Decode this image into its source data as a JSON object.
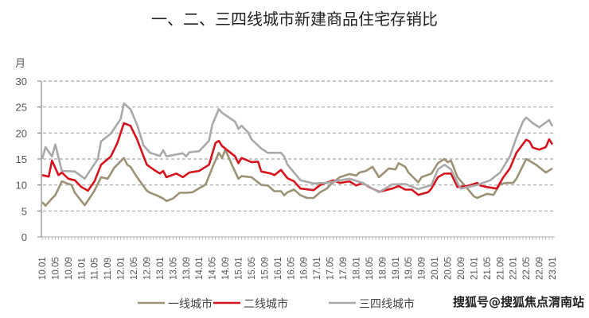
{
  "chart_data": {
    "type": "line",
    "title": "一、二、三四线城市新建商品住宅存销比",
    "ylabel": "月",
    "xlabel": "",
    "ylim": [
      0,
      30
    ],
    "yticks": [
      0,
      5,
      10,
      15,
      20,
      25,
      30
    ],
    "grid": "horizontal dashed",
    "legend_position": "bottom",
    "x_unit": "months since 10.01",
    "x_range": [
      0,
      156
    ],
    "xtick_labels": [
      "10.01",
      "10.05",
      "10.09",
      "11.01",
      "11.05",
      "11.09",
      "12.01",
      "12.05",
      "12.09",
      "13.01",
      "13.05",
      "13.09",
      "14.01",
      "14.05",
      "14.09",
      "15.01",
      "15.05",
      "15.09",
      "16.01",
      "16.05",
      "16.09",
      "17.01",
      "17.05",
      "17.09",
      "18.01",
      "18.05",
      "18.09",
      "19.01",
      "19.05",
      "19.09",
      "20.01",
      "20.05",
      "20.09",
      "21.01",
      "21.05",
      "21.09",
      "22.01",
      "22.05",
      "22.09",
      "23.01"
    ],
    "series": [
      {
        "name": "一线城市",
        "color": "#9c9275",
        "points": [
          [
            0,
            6.7
          ],
          [
            1,
            6
          ],
          [
            3,
            7.4
          ],
          [
            4,
            8
          ],
          [
            6,
            10.7
          ],
          [
            9,
            10
          ],
          [
            10,
            8.5
          ],
          [
            13,
            6.1
          ],
          [
            14,
            7
          ],
          [
            16,
            8.9
          ],
          [
            18,
            11.5
          ],
          [
            20,
            11.2
          ],
          [
            21,
            12.2
          ],
          [
            22,
            13.3
          ],
          [
            25,
            15.2
          ],
          [
            26,
            13.9
          ],
          [
            27,
            13.5
          ],
          [
            29,
            11.5
          ],
          [
            32,
            8.9
          ],
          [
            33,
            8.5
          ],
          [
            35,
            8
          ],
          [
            37,
            7.4
          ],
          [
            38,
            6.9
          ],
          [
            40,
            7.4
          ],
          [
            42,
            8.5
          ],
          [
            44,
            8.5
          ],
          [
            46,
            8.6
          ],
          [
            50,
            10.1
          ],
          [
            52,
            13.3
          ],
          [
            54,
            16.2
          ],
          [
            55,
            15.2
          ],
          [
            56,
            16.8
          ],
          [
            58,
            13.9
          ],
          [
            60,
            11.2
          ],
          [
            61,
            11.7
          ],
          [
            64,
            11.5
          ],
          [
            67,
            10
          ],
          [
            69,
            9.9
          ],
          [
            71,
            8.8
          ],
          [
            73,
            8.8
          ],
          [
            74,
            8
          ],
          [
            75,
            8.6
          ],
          [
            77,
            9.1
          ],
          [
            79,
            8
          ],
          [
            81,
            7.5
          ],
          [
            83,
            7.5
          ],
          [
            85,
            8.6
          ],
          [
            87,
            9.3
          ],
          [
            88,
            10
          ],
          [
            91,
            11.5
          ],
          [
            94,
            12.1
          ],
          [
            96,
            11.8
          ],
          [
            97,
            12.4
          ],
          [
            99,
            12.7
          ],
          [
            101,
            13.5
          ],
          [
            103,
            11.5
          ],
          [
            106,
            13.2
          ],
          [
            108,
            13
          ],
          [
            109,
            14.2
          ],
          [
            111,
            13.5
          ],
          [
            112,
            12.4
          ],
          [
            115,
            10.5
          ],
          [
            116,
            11.5
          ],
          [
            119,
            12.2
          ],
          [
            121,
            14.2
          ],
          [
            123,
            15
          ],
          [
            124,
            14.4
          ],
          [
            125,
            14.7
          ],
          [
            127,
            11.5
          ],
          [
            130,
            9.3
          ],
          [
            132,
            7.8
          ],
          [
            133,
            7.5
          ],
          [
            136,
            8.3
          ],
          [
            138,
            8.1
          ],
          [
            140,
            10.2
          ],
          [
            142,
            10.4
          ],
          [
            144,
            10.4
          ],
          [
            145,
            11.2
          ],
          [
            148,
            15
          ],
          [
            151,
            13.9
          ],
          [
            154,
            12.4
          ],
          [
            156,
            13.2
          ]
        ]
      },
      {
        "name": "二线城市",
        "color": "#d7141e",
        "points": [
          [
            0,
            11.9
          ],
          [
            2,
            11.6
          ],
          [
            3,
            14.7
          ],
          [
            5,
            11.9
          ],
          [
            6,
            12.4
          ],
          [
            8,
            11.2
          ],
          [
            10,
            10.9
          ],
          [
            12,
            9.6
          ],
          [
            14,
            8.9
          ],
          [
            16,
            10.7
          ],
          [
            18,
            13.9
          ],
          [
            21,
            15.5
          ],
          [
            23,
            18.1
          ],
          [
            25,
            21.9
          ],
          [
            27,
            21.4
          ],
          [
            29,
            18.8
          ],
          [
            31,
            15.5
          ],
          [
            32,
            13.9
          ],
          [
            34,
            13
          ],
          [
            36,
            12.2
          ],
          [
            37,
            12.7
          ],
          [
            38,
            11.5
          ],
          [
            41,
            12.2
          ],
          [
            43,
            11.5
          ],
          [
            45,
            12.4
          ],
          [
            48,
            12.7
          ],
          [
            51,
            13.9
          ],
          [
            53,
            18.1
          ],
          [
            54,
            18.5
          ],
          [
            55,
            17.5
          ],
          [
            59,
            15.5
          ],
          [
            60,
            14.2
          ],
          [
            61,
            15.2
          ],
          [
            64,
            14.4
          ],
          [
            66,
            14.5
          ],
          [
            67,
            12.6
          ],
          [
            70,
            12.2
          ],
          [
            71,
            11.9
          ],
          [
            73,
            12.9
          ],
          [
            75,
            11.3
          ],
          [
            77,
            10.7
          ],
          [
            79,
            9.3
          ],
          [
            83,
            9
          ],
          [
            85,
            10
          ],
          [
            89,
            10.9
          ],
          [
            91,
            10.4
          ],
          [
            94,
            10.7
          ],
          [
            96,
            9.9
          ],
          [
            98,
            10.4
          ],
          [
            100,
            9.6
          ],
          [
            103,
            8.7
          ],
          [
            107,
            9.3
          ],
          [
            109,
            9.8
          ],
          [
            111,
            9.1
          ],
          [
            113,
            9.1
          ],
          [
            115,
            8.1
          ],
          [
            118,
            8.6
          ],
          [
            119,
            9.3
          ],
          [
            121,
            11.5
          ],
          [
            123,
            12.2
          ],
          [
            125,
            12.2
          ],
          [
            127,
            9.6
          ],
          [
            130,
            9.8
          ],
          [
            133,
            10.4
          ],
          [
            134,
            9.9
          ],
          [
            136,
            9.6
          ],
          [
            139,
            9.3
          ],
          [
            141,
            11.5
          ],
          [
            143,
            13.2
          ],
          [
            145,
            16.2
          ],
          [
            148,
            18.7
          ],
          [
            149,
            18.4
          ],
          [
            150,
            17.2
          ],
          [
            152,
            16.8
          ],
          [
            154,
            17.3
          ],
          [
            155,
            18.8
          ],
          [
            156,
            17.8
          ]
        ]
      },
      {
        "name": "三四线城市",
        "color": "#a9a9a9",
        "points": [
          [
            0,
            15
          ],
          [
            1,
            17.3
          ],
          [
            3,
            15.5
          ],
          [
            4,
            17.8
          ],
          [
            6,
            12.7
          ],
          [
            10,
            12.6
          ],
          [
            13,
            11.2
          ],
          [
            17,
            15
          ],
          [
            18,
            18.4
          ],
          [
            21,
            19.9
          ],
          [
            24,
            22.7
          ],
          [
            25,
            25.7
          ],
          [
            27,
            24.6
          ],
          [
            29,
            21.6
          ],
          [
            31,
            17.6
          ],
          [
            33,
            16.2
          ],
          [
            36,
            15.6
          ],
          [
            37,
            16.7
          ],
          [
            38,
            15.5
          ],
          [
            43,
            16.1
          ],
          [
            44,
            15.5
          ],
          [
            45,
            16.3
          ],
          [
            48,
            16.5
          ],
          [
            51,
            18.5
          ],
          [
            52,
            21.6
          ],
          [
            54,
            24.6
          ],
          [
            55,
            23.9
          ],
          [
            59,
            22.2
          ],
          [
            60,
            20.8
          ],
          [
            61,
            21.4
          ],
          [
            63,
            20.1
          ],
          [
            64,
            18.8
          ],
          [
            67,
            17
          ],
          [
            69,
            16.2
          ],
          [
            73,
            16.2
          ],
          [
            74,
            15.5
          ],
          [
            75,
            13.9
          ],
          [
            77,
            12.4
          ],
          [
            79,
            10.9
          ],
          [
            83,
            10.3
          ],
          [
            87,
            10.4
          ],
          [
            91,
            10.9
          ],
          [
            94,
            11.2
          ],
          [
            98,
            10.4
          ],
          [
            103,
            8.6
          ],
          [
            107,
            10.1
          ],
          [
            111,
            10.2
          ],
          [
            115,
            9.2
          ],
          [
            119,
            10
          ],
          [
            121,
            13
          ],
          [
            123,
            13.9
          ],
          [
            125,
            13
          ],
          [
            127,
            10.4
          ],
          [
            128,
            9.3
          ],
          [
            133,
            10
          ],
          [
            137,
            10.9
          ],
          [
            140,
            12.4
          ],
          [
            143,
            15.5
          ],
          [
            145,
            19.1
          ],
          [
            147,
            22.2
          ],
          [
            148,
            23
          ],
          [
            150,
            21.9
          ],
          [
            152,
            21.1
          ],
          [
            155,
            22.5
          ],
          [
            156,
            21.3
          ]
        ]
      }
    ]
  },
  "watermark": "搜狐号@搜狐焦点渭南站"
}
